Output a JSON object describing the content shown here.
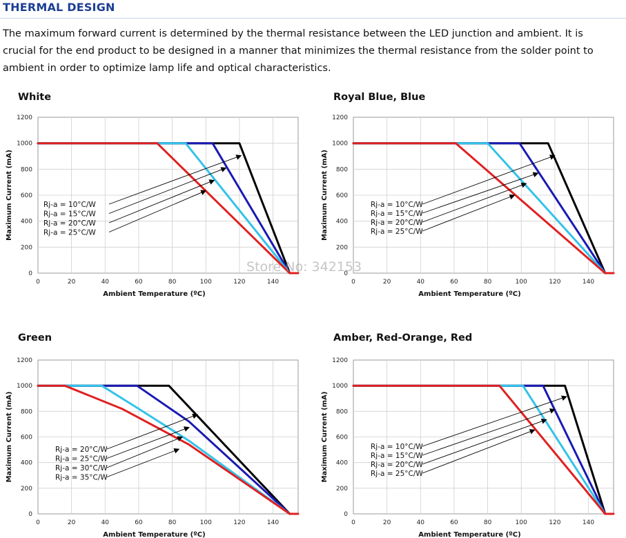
{
  "header": {
    "title": "THERMAL DESIGN",
    "paragraph_lines": [
      "The maximum forward current is determined by the thermal resistance between the LED junction and ambient. It is",
      "crucial for the end product to be designed in a manner that minimizes the thermal resistance from the solder point to",
      "ambient in order to optimize lamp life and optical characteristics."
    ]
  },
  "watermark": "Store No: 342153",
  "colors": {
    "title": "#1c3f94",
    "black": "#000000",
    "blue": "#1a1ab4",
    "cyan": "#33c3e9",
    "red": "#e02020"
  },
  "chart_data": [
    {
      "type": "line",
      "title": "White",
      "xlabel": "Ambient Temperature (ºC)",
      "ylabel": "Maximum Current (mA)",
      "xlim": [
        0,
        155
      ],
      "ylim": [
        0,
        1200
      ],
      "xticks": [
        0,
        20,
        40,
        60,
        80,
        100,
        120,
        140
      ],
      "yticks": [
        0,
        200,
        400,
        600,
        800,
        1000,
        1200
      ],
      "grid": true,
      "annotations": [
        "Rj-a = 10°C/W",
        "Rj-a = 15°C/W",
        "Rj-a = 20°C/W",
        "Rj-a = 25°C/W"
      ],
      "series": [
        {
          "color": "#000000",
          "points": [
            [
              0,
              1000
            ],
            [
              120,
              1000
            ],
            [
              150,
              0
            ]
          ]
        },
        {
          "color": "#1a1ab4",
          "points": [
            [
              0,
              1000
            ],
            [
              104,
              1000
            ],
            [
              150,
              0
            ]
          ]
        },
        {
          "color": "#33c3e9",
          "points": [
            [
              0,
              1000
            ],
            [
              88,
              1000
            ],
            [
              150,
              0
            ]
          ]
        },
        {
          "color": "#e02020",
          "points": [
            [
              0,
              1000
            ],
            [
              71,
              1000
            ],
            [
              150,
              0
            ],
            [
              155,
              0
            ]
          ]
        }
      ],
      "arrow_targets": [
        [
          121,
          905
        ],
        [
          112,
          810
        ],
        [
          105,
          715
        ],
        [
          100,
          635
        ]
      ]
    },
    {
      "type": "line",
      "title": "Royal Blue, Blue",
      "xlabel": "Ambient Temperature (ºC)",
      "ylabel": "Maximum Current (mA)",
      "xlim": [
        0,
        155
      ],
      "ylim": [
        0,
        1200
      ],
      "xticks": [
        0,
        20,
        40,
        60,
        80,
        100,
        120,
        140
      ],
      "yticks": [
        0,
        200,
        400,
        600,
        800,
        1000,
        1200
      ],
      "grid": true,
      "annotations": [
        "Rj-a = 10°C/W",
        "Rj-a = 15°C/W",
        "Rj-a = 20°C/W",
        "Rj-a = 25°C/W"
      ],
      "series": [
        {
          "color": "#000000",
          "points": [
            [
              0,
              1000
            ],
            [
              116,
              1000
            ],
            [
              150,
              0
            ]
          ]
        },
        {
          "color": "#1a1ab4",
          "points": [
            [
              0,
              1000
            ],
            [
              99,
              1000
            ],
            [
              150,
              0
            ]
          ]
        },
        {
          "color": "#33c3e9",
          "points": [
            [
              0,
              1000
            ],
            [
              80,
              1000
            ],
            [
              150,
              0
            ]
          ]
        },
        {
          "color": "#e02020",
          "points": [
            [
              0,
              1000
            ],
            [
              61,
              1000
            ],
            [
              150,
              0
            ],
            [
              155,
              0
            ]
          ]
        }
      ],
      "arrow_targets": [
        [
          120,
          905
        ],
        [
          110,
          770
        ],
        [
          103,
          690
        ],
        [
          96,
          600
        ]
      ]
    },
    {
      "type": "line",
      "title": "Green",
      "xlabel": "Ambient Temperature (ºC)",
      "ylabel": "Maximum Current (mA)",
      "xlim": [
        0,
        155
      ],
      "ylim": [
        0,
        1200
      ],
      "xticks": [
        0,
        20,
        40,
        60,
        80,
        100,
        120,
        140
      ],
      "yticks": [
        0,
        200,
        400,
        600,
        800,
        1000,
        1200
      ],
      "grid": true,
      "annotations": [
        "Rj-a = 20°C/W",
        "Rj-a = 25°C/W",
        "Rj-a = 30°C/W",
        "Rj-a = 35°C/W"
      ],
      "series": [
        {
          "color": "#000000",
          "points": [
            [
              0,
              1000
            ],
            [
              78,
              1000
            ],
            [
              150,
              0
            ]
          ]
        },
        {
          "color": "#1a1ab4",
          "points": [
            [
              0,
              1000
            ],
            [
              59,
              1000
            ],
            [
              90,
              720
            ],
            [
              150,
              0
            ]
          ]
        },
        {
          "color": "#33c3e9",
          "points": [
            [
              0,
              1000
            ],
            [
              38,
              1000
            ],
            [
              60,
              820
            ],
            [
              90,
              570
            ],
            [
              150,
              0
            ]
          ]
        },
        {
          "color": "#e02020",
          "points": [
            [
              0,
              1000
            ],
            [
              16,
              1000
            ],
            [
              50,
              820
            ],
            [
              90,
              540
            ],
            [
              150,
              0
            ],
            [
              155,
              0
            ]
          ]
        }
      ],
      "arrow_targets": [
        [
          95,
          775
        ],
        [
          90,
          675
        ],
        [
          86,
          600
        ],
        [
          84,
          505
        ]
      ]
    },
    {
      "type": "line",
      "title": "Amber, Red-Orange, Red",
      "xlabel": "Ambient Temperature (ºC)",
      "ylabel": "Maximum Current (mA)",
      "xlim": [
        0,
        155
      ],
      "ylim": [
        0,
        1200
      ],
      "xticks": [
        0,
        20,
        40,
        60,
        80,
        100,
        120,
        140
      ],
      "yticks": [
        0,
        200,
        400,
        600,
        800,
        1000,
        1200
      ],
      "grid": true,
      "annotations": [
        "Rj-a = 10°C/W",
        "Rj-a = 15°C/W",
        "Rj-a = 20°C/W",
        "Rj-a = 25°C/W"
      ],
      "series": [
        {
          "color": "#000000",
          "points": [
            [
              0,
              1000
            ],
            [
              126,
              1000
            ],
            [
              150,
              0
            ]
          ]
        },
        {
          "color": "#1a1ab4",
          "points": [
            [
              0,
              1000
            ],
            [
              113,
              1000
            ],
            [
              150,
              0
            ]
          ]
        },
        {
          "color": "#33c3e9",
          "points": [
            [
              0,
              1000
            ],
            [
              101,
              1000
            ],
            [
              150,
              0
            ]
          ]
        },
        {
          "color": "#e02020",
          "points": [
            [
              0,
              1000
            ],
            [
              87,
              1000
            ],
            [
              150,
              0
            ],
            [
              155,
              0
            ]
          ]
        }
      ],
      "arrow_targets": [
        [
          127,
          915
        ],
        [
          120,
          815
        ],
        [
          115,
          735
        ],
        [
          108,
          655
        ]
      ]
    }
  ]
}
